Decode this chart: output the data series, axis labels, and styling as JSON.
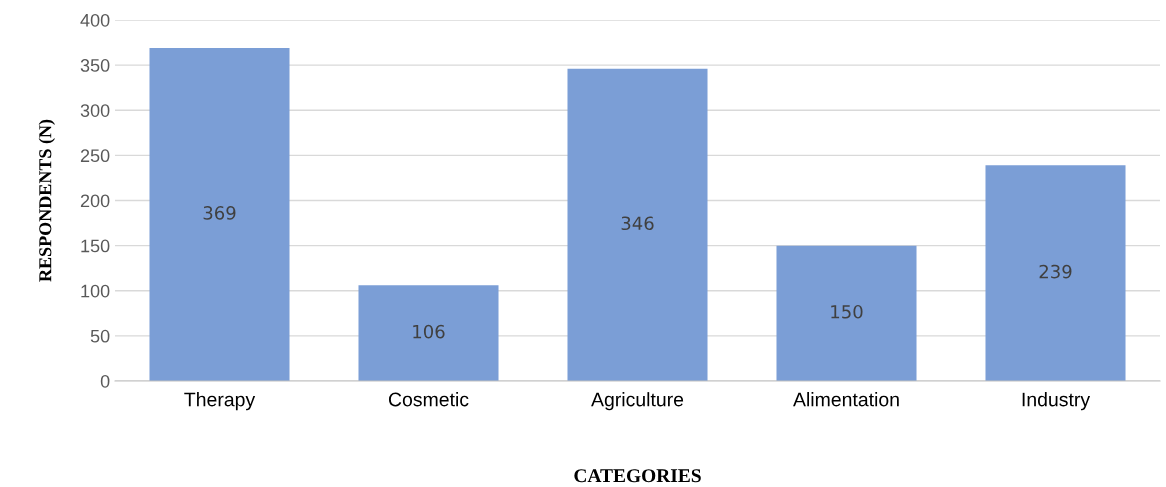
{
  "chart_data": {
    "type": "bar",
    "xlabel": "CATEGORIES",
    "ylabel": "RESPONDENTS (N)",
    "categories": [
      "Therapy",
      "Cosmetic",
      "Agriculture",
      "Alimentation",
      "Industry"
    ],
    "values": [
      369,
      106,
      346,
      150,
      239
    ],
    "color": "#7b9ed6",
    "ylim": [
      0,
      400
    ],
    "yticks": [
      0,
      50,
      100,
      150,
      200,
      250,
      300,
      350,
      400
    ],
    "grid": "y",
    "data_labels": true
  }
}
